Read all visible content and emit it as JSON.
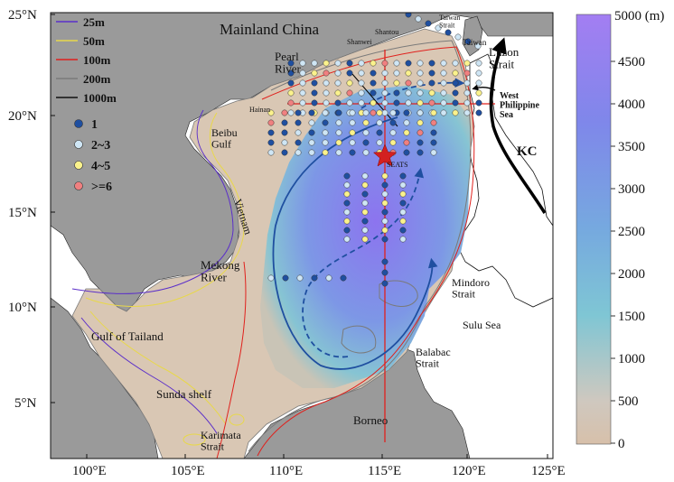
{
  "map": {
    "axis_lon_ticks": [
      "100°E",
      "105°E",
      "110°E",
      "115°E",
      "120°E",
      "125°E"
    ],
    "axis_lat_ticks": [
      "5°N",
      "10°N",
      "15°N",
      "20°N",
      "25°N"
    ],
    "place_labels": {
      "mainland_china": "Mainland China",
      "taiwan_strait": "Taiwan\nStrait",
      "shantou": "Shantou",
      "shanwei": "Shanwei",
      "taiwan": "Taiwan",
      "luzon_strait": "Luzon\nStrait",
      "pearl_river": "Pearl\nRiver",
      "west_philippine_sea": "West\nPhilippine\nSea",
      "kc": "KC",
      "beibu_gulf": "Beibu\nGulf",
      "hainan": "Hainan",
      "seats": "SEATS",
      "vietnam": "Vietnam",
      "mekong_river": "Mekong\nRiver",
      "mindoro_strait": "Mindoro\nStrait",
      "sulu_sea": "Sulu Sea",
      "gulf_of_tailand": "Gulf of Tailand",
      "balabac_strait": "Balabac\nStrait",
      "sunda_shelf": "Sunda shelf",
      "borneo": "Borneo",
      "karimata_strait": "Karimata\nStrait"
    },
    "isobath_legend": [
      {
        "label": "25m",
        "color": "#5b2fc9"
      },
      {
        "label": "50m",
        "color": "#e8d84a"
      },
      {
        "label": "100m",
        "color": "#e0201c"
      },
      {
        "label": "200m",
        "color": "#7a7a7a"
      },
      {
        "label": "1000m",
        "color": "#111111"
      }
    ],
    "station_legend": [
      {
        "label": "1",
        "color": "#1f4fa0"
      },
      {
        "label": "2~3",
        "color": "#cfe6f5"
      },
      {
        "label": "4~5",
        "color": "#fbf28c"
      },
      {
        "label": ">=6",
        "color": "#f08080"
      }
    ],
    "colorbar": {
      "max_label": "5000 (m)",
      "ticks": [
        "4500",
        "4000",
        "3500",
        "3000",
        "2500",
        "2000",
        "1500",
        "1000",
        "500",
        "0"
      ]
    },
    "colors": {
      "land": "#9a9a9a",
      "shelf": "#d9c7b4",
      "deep": "#8a74ee",
      "mid": "#79b9d6",
      "circulation": "#1f4fa0",
      "kc_arrow": "#000000",
      "section_line": "#e0201c"
    }
  }
}
